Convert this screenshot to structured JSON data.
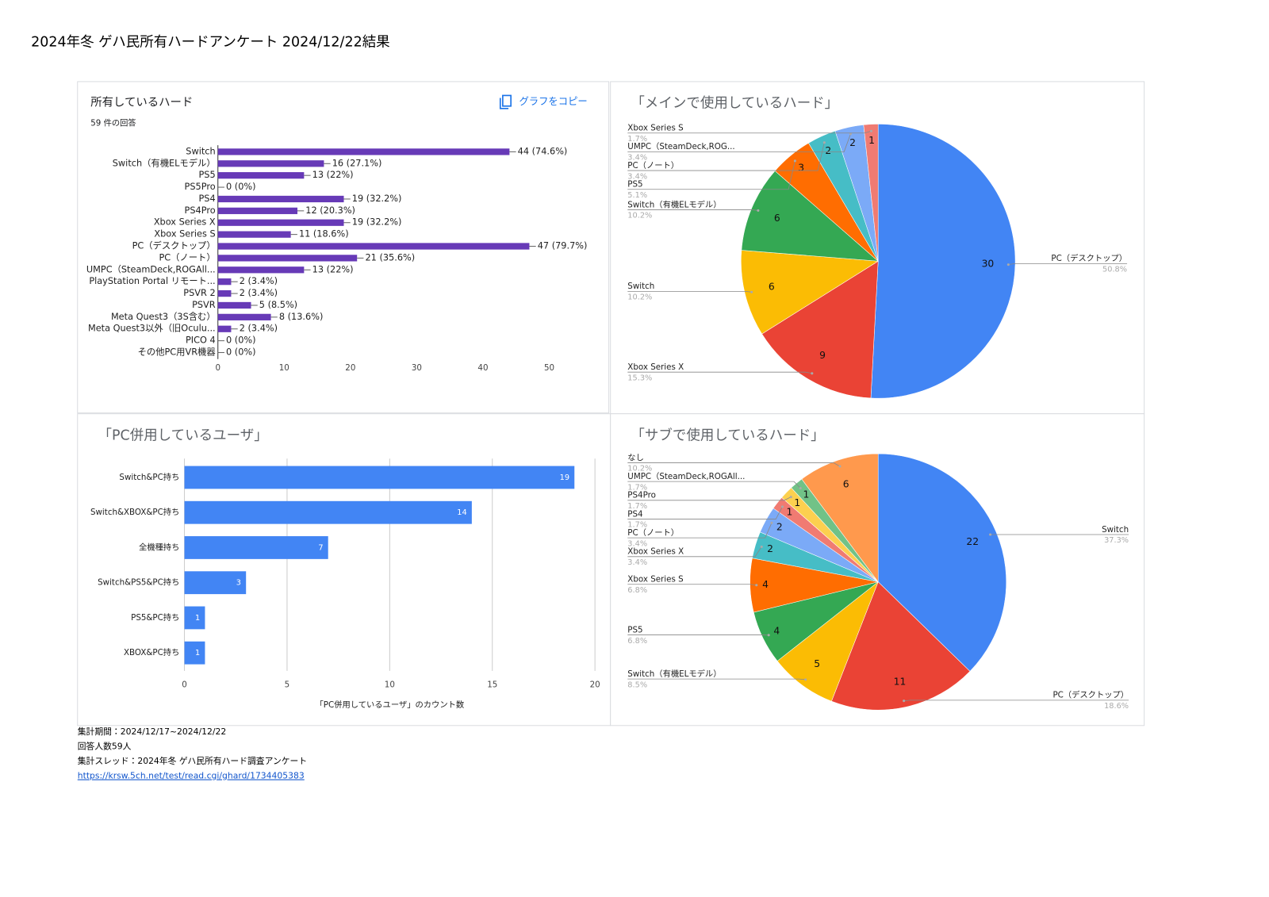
{
  "title": "2024年冬 ゲハ民所有ハードアンケート 2024/12/22結果",
  "chart_data": [
    {
      "type": "bar",
      "title": "所有しているハード",
      "subtitle": "59 件の回答",
      "copy_button": "グラフをコピー",
      "categories": [
        "Switch",
        "Switch（有機ELモデル）",
        "PS5",
        "PS5Pro",
        "PS4",
        "PS4Pro",
        "Xbox Series X",
        "Xbox Series S",
        "PC（デスクトップ）",
        "PC（ノート）",
        "UMPC（SteamDeck,ROGAll...",
        "PlayStation Portal リモート...",
        "PSVR 2",
        "PSVR",
        "Meta Quest3（3S含む）",
        "Meta Quest3以外（旧Oculu...",
        "PICO 4",
        "その他PC用VR機器"
      ],
      "values": [
        44,
        16,
        13,
        0,
        19,
        12,
        19,
        11,
        47,
        21,
        13,
        2,
        2,
        5,
        8,
        2,
        0,
        0
      ],
      "value_labels": [
        "44 (74.6%)",
        "16 (27.1%)",
        "13 (22%)",
        "0 (0%)",
        "19 (32.2%)",
        "12 (20.3%)",
        "19 (32.2%)",
        "11 (18.6%)",
        "47 (79.7%)",
        "21 (35.6%)",
        "13 (22%)",
        "2 (3.4%)",
        "2 (3.4%)",
        "5 (8.5%)",
        "8 (13.6%)",
        "2 (3.4%)",
        "0 (0%)",
        "0 (0%)"
      ],
      "color": "#673ab7",
      "xlim": [
        0,
        50
      ],
      "xticks": [
        0,
        10,
        20,
        30,
        40,
        50
      ],
      "grid": false
    },
    {
      "type": "pie",
      "title": "「メインで使用しているハード」",
      "categories": [
        "PC（デスクトップ）",
        "Xbox Series X",
        "Switch",
        "Switch（有機ELモデル）",
        "PS5",
        "PC（ノート）",
        "UMPC（SteamDeck,ROG...",
        "Xbox Series S"
      ],
      "values": [
        30,
        9,
        6,
        6,
        3,
        2,
        2,
        1
      ],
      "percent_labels": [
        "50.8%",
        "15.3%",
        "10.2%",
        "10.2%",
        "5.1%",
        "3.4%",
        "3.4%",
        "1.7%"
      ],
      "colors": [
        "#4285f4",
        "#ea4335",
        "#fbbc04",
        "#34a853",
        "#ff6d01",
        "#46bdc6",
        "#7baaf7",
        "#f07b72"
      ]
    },
    {
      "type": "bar",
      "title": "「PC併用しているユーザ」",
      "categories": [
        "Switch&PC持ち",
        "Switch&XBOX&PC持ち",
        "全機種持ち",
        "Switch&PS5&PC持ち",
        "PS5&PC持ち",
        "XBOX&PC持ち"
      ],
      "values": [
        19,
        14,
        7,
        3,
        1,
        1
      ],
      "color": "#4285f4",
      "xlim": [
        0,
        20
      ],
      "xticks": [
        0,
        5,
        10,
        15,
        20
      ],
      "xlabel": "「PC併用しているユーザ」のカウント数",
      "grid": true
    },
    {
      "type": "pie",
      "title": "「サブで使用しているハード」",
      "categories": [
        "Switch",
        "PC（デスクトップ）",
        "Switch（有機ELモデル）",
        "PS5",
        "Xbox Series S",
        "Xbox Series X",
        "PC（ノート）",
        "PS4",
        "PS4Pro",
        "UMPC（SteamDeck,ROGAll...",
        "なし"
      ],
      "values": [
        22,
        11,
        5,
        4,
        4,
        2,
        2,
        1,
        1,
        1,
        6
      ],
      "percent_labels": [
        "37.3%",
        "18.6%",
        "8.5%",
        "6.8%",
        "6.8%",
        "3.4%",
        "3.4%",
        "1.7%",
        "1.7%",
        "1.7%",
        "10.2%"
      ],
      "colors": [
        "#4285f4",
        "#ea4335",
        "#fbbc04",
        "#34a853",
        "#ff6d01",
        "#46bdc6",
        "#7baaf7",
        "#f07b72",
        "#fcd04f",
        "#71c287",
        "#ff994d"
      ]
    }
  ],
  "footer": {
    "period": "集計期間：2024/12/17~2024/12/22",
    "respondents": "回答人数59人",
    "thread": "集計スレッド：2024年冬 ゲハ民所有ハード調査アンケート",
    "url": "https://krsw.5ch.net/test/read.cgi/ghard/1734405383"
  }
}
